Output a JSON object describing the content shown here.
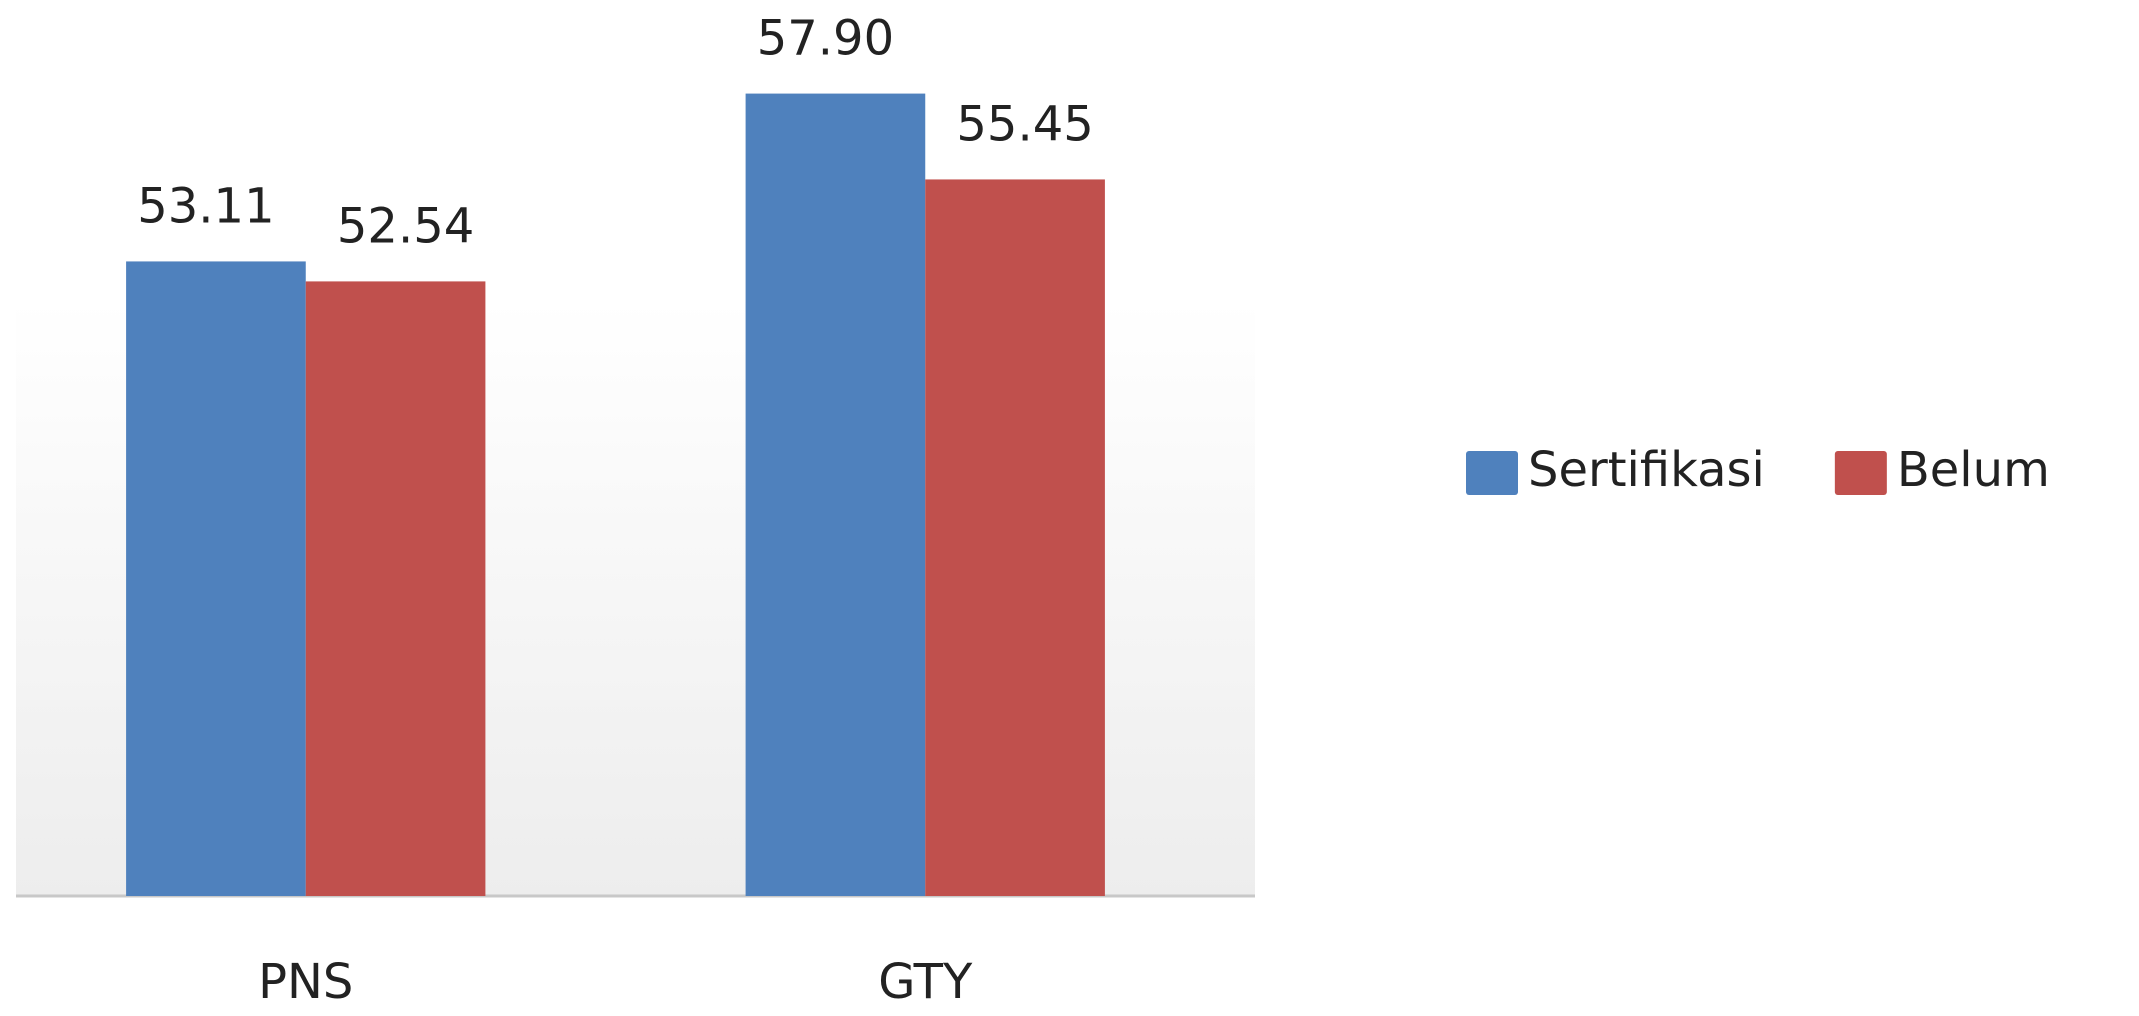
{
  "chart_data": {
    "type": "bar",
    "categories": [
      "PNS",
      "GTY"
    ],
    "series": [
      {
        "name": "Sertifikasi",
        "color": "#4f81bd",
        "values": [
          53.11,
          57.9
        ],
        "value_labels": [
          "53.11",
          "57.90"
        ]
      },
      {
        "name": "Belum",
        "color": "#c0504d",
        "values": [
          52.54,
          55.45
        ],
        "value_labels": [
          "52.54",
          "55.45"
        ]
      }
    ],
    "ylim": [
      35,
      60
    ],
    "legend": "right"
  }
}
